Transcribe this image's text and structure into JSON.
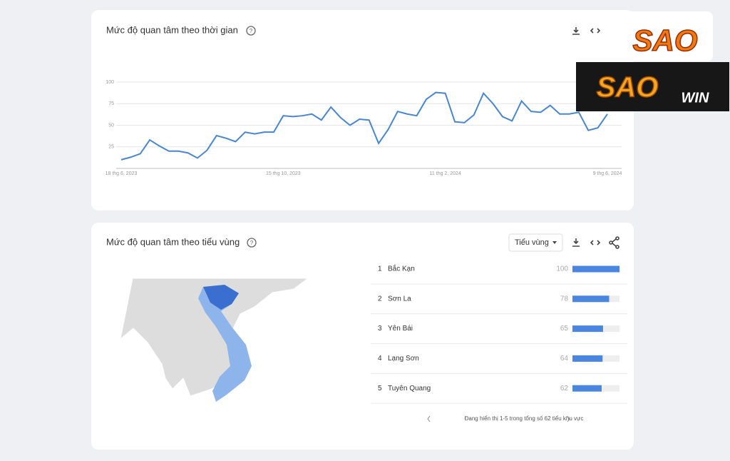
{
  "chart_data": {
    "type": "line",
    "title": "Mức độ quan tâm theo thời gian",
    "categories": [
      "18 thg 6, 2023",
      null,
      null,
      null,
      null,
      null,
      null,
      null,
      null,
      null,
      null,
      null,
      null,
      null,
      null,
      null,
      null,
      "15 thg 10, 2023",
      null,
      null,
      null,
      null,
      null,
      null,
      null,
      null,
      null,
      null,
      null,
      null,
      null,
      null,
      null,
      null,
      "11 thg 2, 2024",
      null,
      null,
      null,
      null,
      null,
      null,
      null,
      null,
      null,
      null,
      null,
      null,
      null,
      null,
      null,
      null,
      "9 thg 6, 2024"
    ],
    "values": [
      10,
      13,
      17,
      33,
      26,
      20,
      20,
      18,
      12,
      21,
      38,
      35,
      31,
      42,
      40,
      42,
      42,
      61,
      60,
      61,
      63,
      56,
      71,
      59,
      50,
      57,
      56,
      29,
      45,
      66,
      63,
      61,
      80,
      88,
      87,
      54,
      53,
      62,
      87,
      75,
      60,
      55,
      78,
      66,
      65,
      73,
      63,
      63,
      65,
      44,
      47,
      63
    ],
    "color": "#4a86cf",
    "ylim": [
      0,
      100
    ],
    "yticks": [
      25,
      50,
      75,
      100
    ],
    "grid": true
  },
  "region_card": {
    "title": "Mức độ quan tâm theo tiểu vùng",
    "dropdown": "Tiểu vùng",
    "regions": [
      {
        "rank": "1",
        "name": "Bắc Kạn",
        "value": 100
      },
      {
        "rank": "2",
        "name": "Sơn La",
        "value": 78
      },
      {
        "rank": "3",
        "name": "Yên Bái",
        "value": 65
      },
      {
        "rank": "4",
        "name": "Lạng Sơn",
        "value": 64
      },
      {
        "rank": "5",
        "name": "Tuyên Quang",
        "value": 62
      }
    ],
    "footer": "Đang hiển thị 1-5 trong tổng số 62 tiểu khu vực"
  },
  "logo": {
    "top": "SAO",
    "main": "SAO",
    "sub": "WIN"
  }
}
